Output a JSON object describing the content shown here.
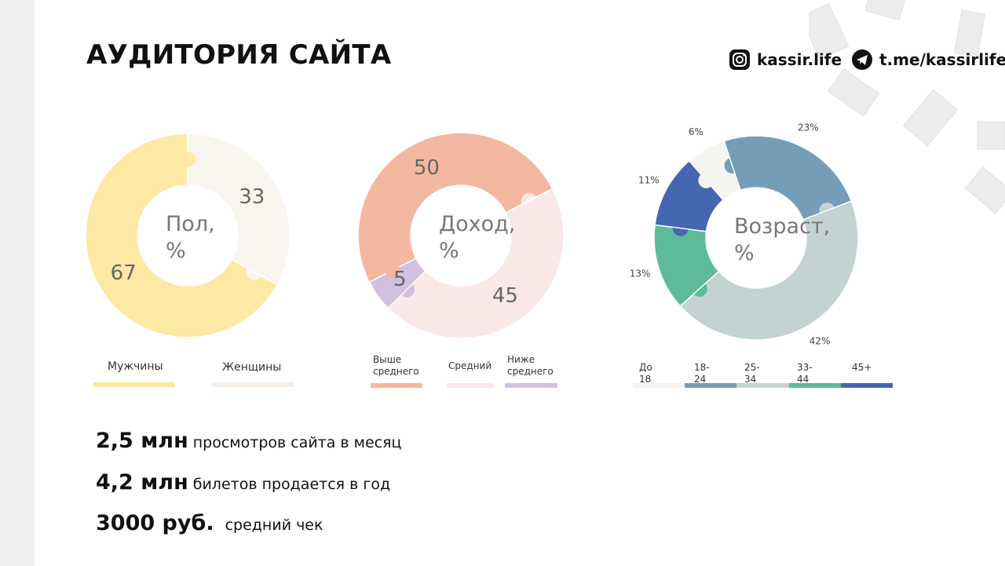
{
  "title": "АУДИТОРИЯ САЙТА",
  "social": {
    "instagram": "kassir.life",
    "telegram": "t.me/kassirlife"
  },
  "colors": {
    "male": "#fde8a4",
    "female": "#f8f5ef",
    "above_avg": "#f4b8a0",
    "average": "#f9e8e6",
    "below_avg": "#d3c0de",
    "age_under18": "#f6f4ef",
    "age_18_24": "#769db8",
    "age_25_34": "#c2d3d1",
    "age_33_44": "#5dbb9a",
    "age_45plus": "#4566b0"
  },
  "chart_data": [
    {
      "type": "pie",
      "variant": "donut",
      "center_label": "Пол, %",
      "categories": [
        "Мужчины",
        "Женщины"
      ],
      "values": [
        67,
        33
      ],
      "colors": [
        "#fde8a4",
        "#f8f5ef"
      ],
      "labels": [
        "67",
        "33"
      ],
      "legend_position": "bottom"
    },
    {
      "type": "pie",
      "variant": "donut",
      "center_label": "Доход, %",
      "categories": [
        "Выше среднего",
        "Средний",
        "Ниже среднего"
      ],
      "values": [
        50,
        45,
        5
      ],
      "colors": [
        "#f4b8a0",
        "#f9e8e6",
        "#d3c0de"
      ],
      "labels": [
        "50",
        "45",
        "5"
      ],
      "legend_position": "bottom"
    },
    {
      "type": "pie",
      "variant": "donut",
      "center_label": "Возраст, %",
      "categories": [
        "До 18",
        "18-24",
        "25-34",
        "33-44",
        "45+"
      ],
      "values": [
        6,
        23,
        42,
        13,
        11
      ],
      "colors": [
        "#f6f4ef",
        "#769db8",
        "#c2d3d1",
        "#5dbb9a",
        "#4566b0"
      ],
      "labels": [
        "6%",
        "23%",
        "42%",
        "13%",
        "11%"
      ],
      "legend_position": "bottom"
    }
  ],
  "legend": {
    "gender": [
      "Мужчины",
      "Женщины"
    ],
    "income": [
      "Выше среднего",
      "Средний",
      "Ниже среднего"
    ],
    "age": [
      "До 18",
      "18-24",
      "25-34",
      "33-44",
      "45+"
    ]
  },
  "stats": [
    {
      "value": "2,5 млн",
      "text": "просмотров сайта в месяц"
    },
    {
      "value": "4,2 млн",
      "text": "билетов продается в год"
    },
    {
      "value": "3000 руб.",
      "text": "средний чек"
    }
  ]
}
